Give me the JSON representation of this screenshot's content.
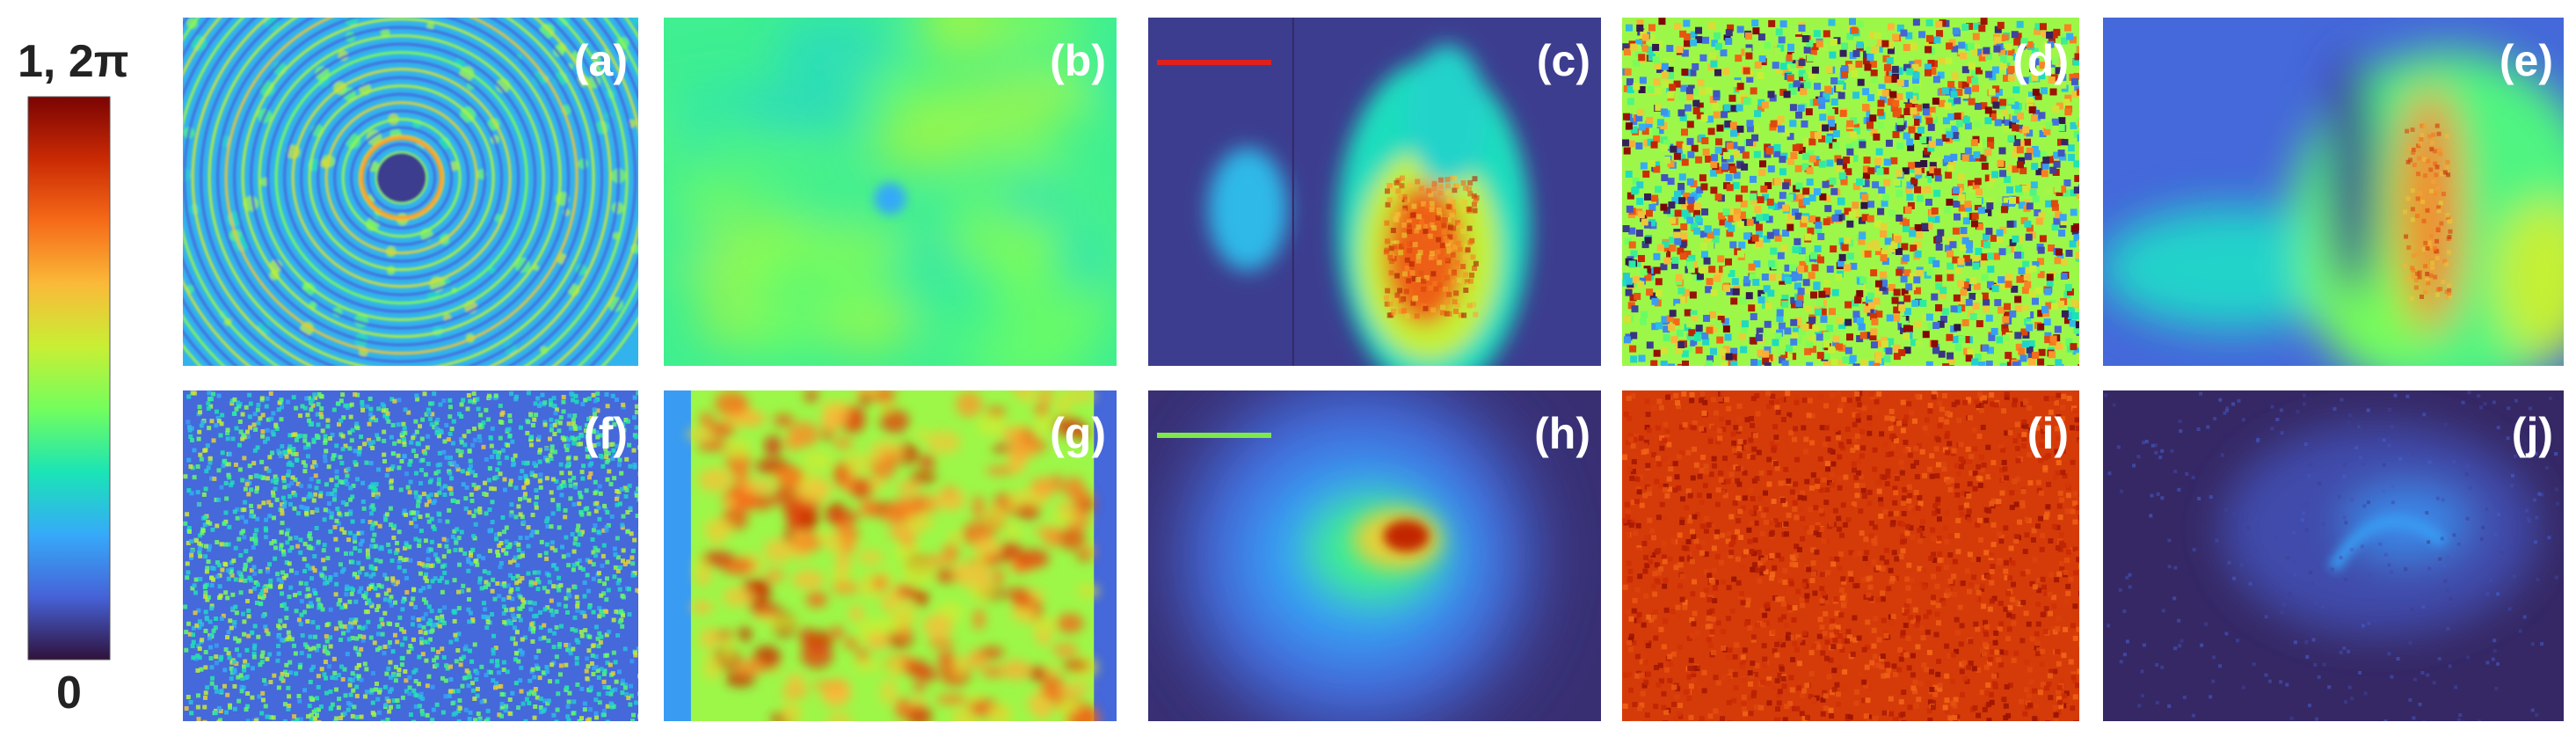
{
  "colorbar": {
    "top_label": "1, 2π",
    "bottom_label": "0",
    "colormap": [
      "#30123b",
      "#4662d7",
      "#36aaf9",
      "#1ae4b6",
      "#72fe5e",
      "#c8ef34",
      "#faba39",
      "#f66b19",
      "#ca2a04",
      "#7a0403"
    ]
  },
  "panels": [
    {
      "label": "(a)",
      "style": "rings"
    },
    {
      "label": "(b)",
      "style": "smooth_cyan_green"
    },
    {
      "label": "(c)",
      "style": "intensity_hot_core",
      "scale_bar_color": "#e0201c"
    },
    {
      "label": "(d)",
      "style": "random_phase"
    },
    {
      "label": "(e)",
      "style": "intensity_curved_streak"
    },
    {
      "label": "(f)",
      "style": "speckle_dark"
    },
    {
      "label": "(g)",
      "style": "speckle_hot_band"
    },
    {
      "label": "(h)",
      "style": "gaussian_spot",
      "scale_bar_color": "#7ee84a"
    },
    {
      "label": "(i)",
      "style": "red_noise"
    },
    {
      "label": "(j)",
      "style": "dim_arc"
    }
  ]
}
